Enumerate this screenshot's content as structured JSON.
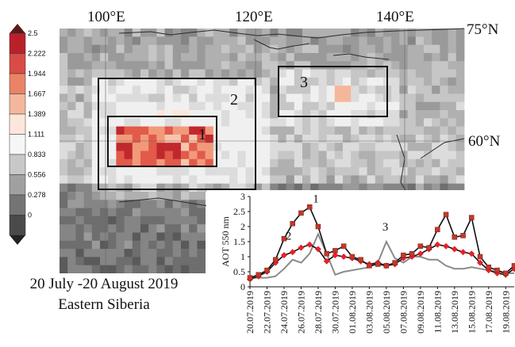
{
  "map": {
    "lon_labels": [
      "100°E",
      "120°E",
      "140°E"
    ],
    "lat_labels": [
      "75°N",
      "60°N"
    ],
    "regions": [
      "1",
      "2",
      "3"
    ],
    "colorbar": {
      "ticks": [
        "2.5",
        "2.222",
        "1.944",
        "1.667",
        "1.389",
        "1.111",
        "0.833",
        "0.556",
        "0.278",
        "0"
      ],
      "colors": [
        "#b9202a",
        "#d94b45",
        "#ea8366",
        "#f5b79b",
        "#fde6da",
        "#f6f6f6",
        "#c8c8c8",
        "#a0a0a0",
        "#747474",
        "#4a4a4a"
      ]
    }
  },
  "caption": {
    "line1": "20 July -20 August 2019",
    "line2": "Eastern Siberia"
  },
  "chart_data": {
    "type": "line",
    "title": "",
    "xlabel": "",
    "ylabel": "AOT 550 nm",
    "ylim": [
      0,
      3
    ],
    "yticks": [
      "0",
      "0.5",
      "1",
      "1.5",
      "2",
      "2.5",
      "3"
    ],
    "x": [
      "20.07.2019",
      "21.07.2019",
      "22.07.2019",
      "23.07.2019",
      "24.07.2019",
      "25.07.2019",
      "26.07.2019",
      "27.07.2019",
      "28.07.2019",
      "29.07.2019",
      "30.07.2019",
      "31.07.2019",
      "01.08.2019",
      "02.08.2019",
      "03.08.2019",
      "04.08.2019",
      "05.08.2019",
      "06.08.2019",
      "07.08.2019",
      "08.08.2019",
      "09.08.2019",
      "10.08.2019",
      "11.08.2019",
      "12.08.2019",
      "13.08.2019",
      "14.08.2019",
      "15.08.2019",
      "16.08.2019",
      "17.08.2019",
      "18.08.2019",
      "19.08.2019",
      "20.08.2019"
    ],
    "x_tick_labels": [
      "20.07.2019",
      "22.07.2019",
      "24.07.2019",
      "26.07.2019",
      "28.07.2019",
      "30.07.2019",
      "01.08.2019",
      "03.08.2019",
      "05.08.2019",
      "07.08.2019",
      "09.08.2019",
      "11.08.2019",
      "13.08.2019",
      "15.08.2019",
      "17.08.2019",
      "19.08.2019"
    ],
    "series": [
      {
        "name": "1",
        "color": "#c0392b",
        "line_color": "#111111",
        "marker": "square",
        "values": [
          0.3,
          0.4,
          0.55,
          0.9,
          1.6,
          2.1,
          2.45,
          2.65,
          2.0,
          1.1,
          1.2,
          1.35,
          1.0,
          0.9,
          0.7,
          0.75,
          0.7,
          0.8,
          1.05,
          1.1,
          1.35,
          1.3,
          1.9,
          2.4,
          1.65,
          1.7,
          2.3,
          1.0,
          0.65,
          0.55,
          0.45,
          0.7
        ]
      },
      {
        "name": "2",
        "color": "#e8202a",
        "line_color": "#111111",
        "marker": "diamond",
        "values": [
          0.25,
          0.35,
          0.5,
          0.8,
          1.05,
          1.15,
          1.3,
          1.4,
          1.25,
          0.85,
          1.05,
          1.0,
          0.95,
          0.85,
          0.75,
          0.8,
          0.7,
          0.75,
          0.95,
          1.0,
          1.1,
          1.25,
          1.4,
          1.35,
          1.25,
          1.15,
          1.1,
          0.8,
          0.55,
          0.45,
          0.4,
          0.6
        ]
      },
      {
        "name": "3",
        "color": "#8a8a8a",
        "line_color": "#8a8a8a",
        "marker": "none",
        "values": [
          0.3,
          0.3,
          0.3,
          0.35,
          0.6,
          0.9,
          0.8,
          1.1,
          1.75,
          1.1,
          0.4,
          0.5,
          0.55,
          0.6,
          0.65,
          0.8,
          1.5,
          0.95,
          0.8,
          1.0,
          1.0,
          0.9,
          0.9,
          0.7,
          0.6,
          0.6,
          0.65,
          0.6,
          0.55,
          0.5,
          0.45,
          0.45
        ]
      }
    ]
  }
}
